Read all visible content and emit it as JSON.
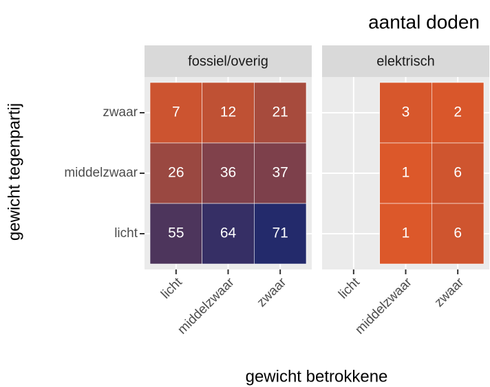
{
  "chart_data": {
    "type": "heatmap",
    "title": "aantal doden",
    "x_label": "gewicht betrokkene",
    "y_label": "gewicht tegenpartij",
    "categories": [
      "licht",
      "middelzwaar",
      "zwaar"
    ],
    "y_categories": [
      "zwaar",
      "middelzwaar",
      "licht"
    ],
    "panels": [
      {
        "name": "fossiel/overig",
        "values": [
          [
            7,
            12,
            21
          ],
          [
            26,
            36,
            37
          ],
          [
            55,
            64,
            71
          ]
        ]
      },
      {
        "name": "elektrisch",
        "values": [
          [
            null,
            3,
            2
          ],
          [
            null,
            1,
            6
          ],
          [
            null,
            1,
            6
          ]
        ]
      }
    ],
    "colors": {
      "low": "#dc582a",
      "high": "#232a6b"
    }
  }
}
